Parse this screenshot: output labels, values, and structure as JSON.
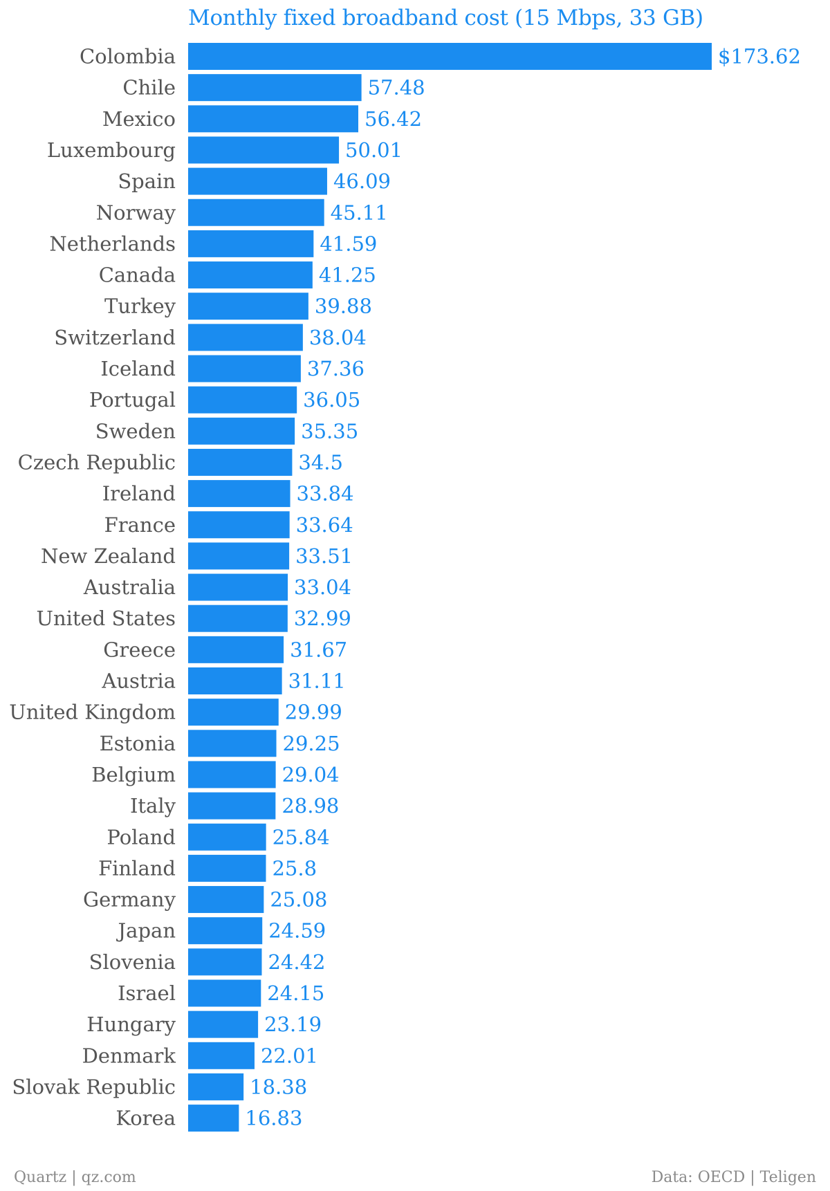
{
  "colors": {
    "bar": "#1a8cf0",
    "title": "#1a8cf0",
    "value_label": "#1a8cf0",
    "category_label": "#555555",
    "footer": "#8a8a8a",
    "background": "#ffffff"
  },
  "footer": {
    "source_left": "Quartz | qz.com",
    "source_right": "Data: OECD | Teligen"
  },
  "chart_data": {
    "type": "bar",
    "orientation": "horizontal",
    "title": "Monthly fixed broadband cost (15 Mbps, 33 GB)",
    "xlabel": "",
    "ylabel": "",
    "xlim": [
      0,
      173.62
    ],
    "grid": false,
    "legend": "none",
    "categories": [
      "Colombia",
      "Chile",
      "Mexico",
      "Luxembourg",
      "Spain",
      "Norway",
      "Netherlands",
      "Canada",
      "Turkey",
      "Switzerland",
      "Iceland",
      "Portugal",
      "Sweden",
      "Czech Republic",
      "Ireland",
      "France",
      "New Zealand",
      "Australia",
      "United States",
      "Greece",
      "Austria",
      "United Kingdom",
      "Estonia",
      "Belgium",
      "Italy",
      "Poland",
      "Finland",
      "Germany",
      "Japan",
      "Slovenia",
      "Israel",
      "Hungary",
      "Denmark",
      "Slovak Republic",
      "Korea"
    ],
    "values": [
      173.62,
      57.48,
      56.42,
      50.01,
      46.09,
      45.11,
      41.59,
      41.25,
      39.88,
      38.04,
      37.36,
      36.05,
      35.35,
      34.5,
      33.84,
      33.64,
      33.51,
      33.04,
      32.99,
      31.67,
      31.11,
      29.99,
      29.25,
      29.04,
      28.98,
      25.84,
      25.8,
      25.08,
      24.59,
      24.42,
      24.15,
      23.19,
      22.01,
      18.38,
      16.83
    ],
    "value_labels": [
      "$173.62",
      "57.48",
      "56.42",
      "50.01",
      "46.09",
      "45.11",
      "41.59",
      "41.25",
      "39.88",
      "38.04",
      "37.36",
      "36.05",
      "35.35",
      "34.5",
      "33.84",
      "33.64",
      "33.51",
      "33.04",
      "32.99",
      "31.67",
      "31.11",
      "29.99",
      "29.25",
      "29.04",
      "28.98",
      "25.84",
      "25.8",
      "25.08",
      "24.59",
      "24.42",
      "24.15",
      "23.19",
      "22.01",
      "18.38",
      "16.83"
    ]
  }
}
